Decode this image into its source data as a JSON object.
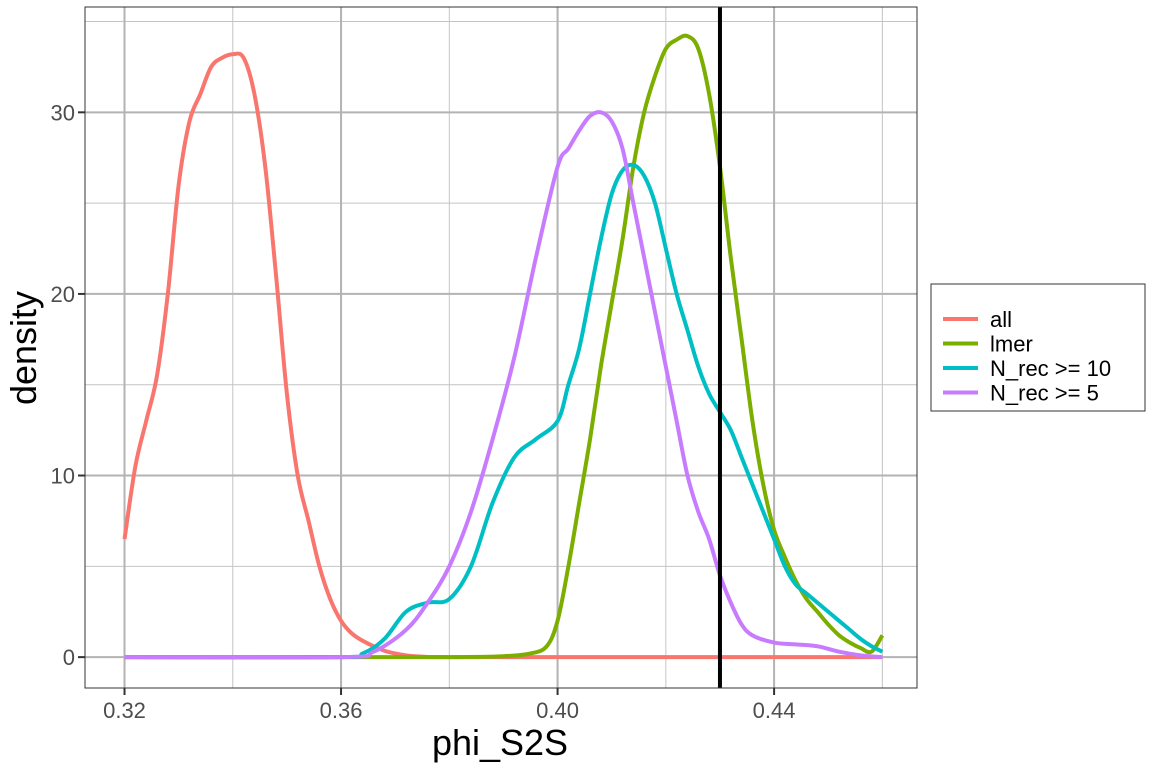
{
  "chart_data": {
    "type": "line",
    "title": "",
    "xlabel": "phi_S2S",
    "ylabel": "density",
    "xlim": [
      0.3127,
      0.4664
    ],
    "ylim": [
      -1.7,
      35.8
    ],
    "x_ticks": [
      0.32,
      0.36,
      0.4,
      0.44
    ],
    "x_tick_labels": [
      "0.32",
      "0.36",
      "0.40",
      "0.44"
    ],
    "y_ticks": [
      0,
      10,
      20,
      30
    ],
    "y_tick_labels": [
      "0",
      "10",
      "20",
      "30"
    ],
    "x_minor": [
      0.34,
      0.38,
      0.42,
      0.46
    ],
    "y_minor": [
      5,
      15,
      25,
      35
    ],
    "grid": true,
    "vline": 0.43,
    "vline_color": "#000000",
    "legend_position": "right",
    "series": [
      {
        "name": "all",
        "color": "#F8766D",
        "x": [
          0.32,
          0.322,
          0.324,
          0.326,
          0.328,
          0.33,
          0.332,
          0.334,
          0.336,
          0.338,
          0.34,
          0.342,
          0.344,
          0.346,
          0.348,
          0.35,
          0.352,
          0.354,
          0.356,
          0.358,
          0.36,
          0.362,
          0.364,
          0.366,
          0.368,
          0.37,
          0.372,
          0.374,
          0.376,
          0.378,
          0.38,
          0.382,
          0.384,
          0.386,
          0.39,
          0.4,
          0.42,
          0.44,
          0.46
        ],
        "y": [
          6.5,
          10.5,
          13.0,
          15.5,
          20.0,
          26.0,
          29.5,
          31.0,
          32.5,
          33.0,
          33.2,
          33.0,
          31.0,
          27.0,
          21.0,
          14.5,
          10.0,
          7.5,
          5.0,
          3.2,
          2.0,
          1.3,
          0.9,
          0.6,
          0.35,
          0.2,
          0.1,
          0.04,
          0.01,
          0,
          0,
          0,
          0,
          0,
          0,
          0,
          0,
          0,
          0
        ]
      },
      {
        "name": "lmer",
        "color": "#7CAE00",
        "x": [
          0.32,
          0.36,
          0.38,
          0.39,
          0.395,
          0.398,
          0.4,
          0.402,
          0.404,
          0.406,
          0.408,
          0.41,
          0.412,
          0.414,
          0.416,
          0.418,
          0.42,
          0.422,
          0.424,
          0.426,
          0.428,
          0.43,
          0.432,
          0.434,
          0.436,
          0.438,
          0.44,
          0.442,
          0.444,
          0.446,
          0.448,
          0.45,
          0.452,
          0.454,
          0.456,
          0.458,
          0.46
        ],
        "y": [
          0,
          0,
          0,
          0.05,
          0.2,
          0.6,
          2.0,
          5.0,
          8.5,
          12.0,
          16.0,
          19.5,
          23.0,
          27.0,
          30.0,
          32.0,
          33.5,
          34.0,
          34.2,
          33.5,
          31.0,
          27.0,
          22.0,
          17.5,
          13.0,
          9.5,
          7.0,
          5.5,
          4.2,
          3.2,
          2.5,
          1.8,
          1.2,
          0.8,
          0.5,
          0.3,
          1.2
        ]
      },
      {
        "name": "N_rec >= 10",
        "color": "#00BFC4",
        "x": [
          0.32,
          0.36,
          0.364,
          0.368,
          0.372,
          0.376,
          0.38,
          0.384,
          0.388,
          0.392,
          0.396,
          0.4,
          0.402,
          0.404,
          0.406,
          0.408,
          0.41,
          0.412,
          0.414,
          0.416,
          0.418,
          0.42,
          0.422,
          0.424,
          0.426,
          0.428,
          0.43,
          0.432,
          0.434,
          0.436,
          0.438,
          0.44,
          0.442,
          0.444,
          0.446,
          0.448,
          0.45,
          0.452,
          0.454,
          0.456,
          0.458,
          0.46
        ],
        "y": [
          0,
          0,
          0.2,
          1.0,
          2.5,
          3.0,
          3.2,
          5.0,
          8.5,
          11.0,
          12.0,
          13.0,
          15.0,
          17.0,
          20.0,
          23.0,
          25.5,
          26.8,
          27.1,
          26.5,
          25.0,
          22.5,
          20.0,
          18.0,
          16.0,
          14.5,
          13.5,
          12.5,
          11.0,
          9.5,
          8.0,
          6.5,
          5.0,
          4.0,
          3.5,
          3.0,
          2.5,
          2.0,
          1.5,
          1.0,
          0.6,
          0.3
        ]
      },
      {
        "name": "N_rec >= 5",
        "color": "#C77CFF",
        "x": [
          0.32,
          0.36,
          0.366,
          0.372,
          0.376,
          0.38,
          0.384,
          0.388,
          0.392,
          0.396,
          0.4,
          0.402,
          0.404,
          0.406,
          0.408,
          0.41,
          0.412,
          0.414,
          0.416,
          0.418,
          0.42,
          0.422,
          0.424,
          0.426,
          0.428,
          0.43,
          0.432,
          0.434,
          0.436,
          0.44,
          0.444,
          0.448,
          0.452,
          0.456,
          0.46
        ],
        "y": [
          0,
          0,
          0.3,
          1.5,
          3.0,
          5.0,
          8.0,
          12.0,
          16.5,
          22.0,
          27.0,
          28.0,
          29.0,
          29.8,
          30.0,
          29.5,
          28.0,
          25.0,
          22.0,
          19.0,
          16.0,
          13.0,
          10.0,
          8.0,
          6.5,
          4.5,
          3.0,
          1.8,
          1.2,
          0.8,
          0.7,
          0.6,
          0.3,
          0.1,
          0
        ]
      }
    ]
  }
}
